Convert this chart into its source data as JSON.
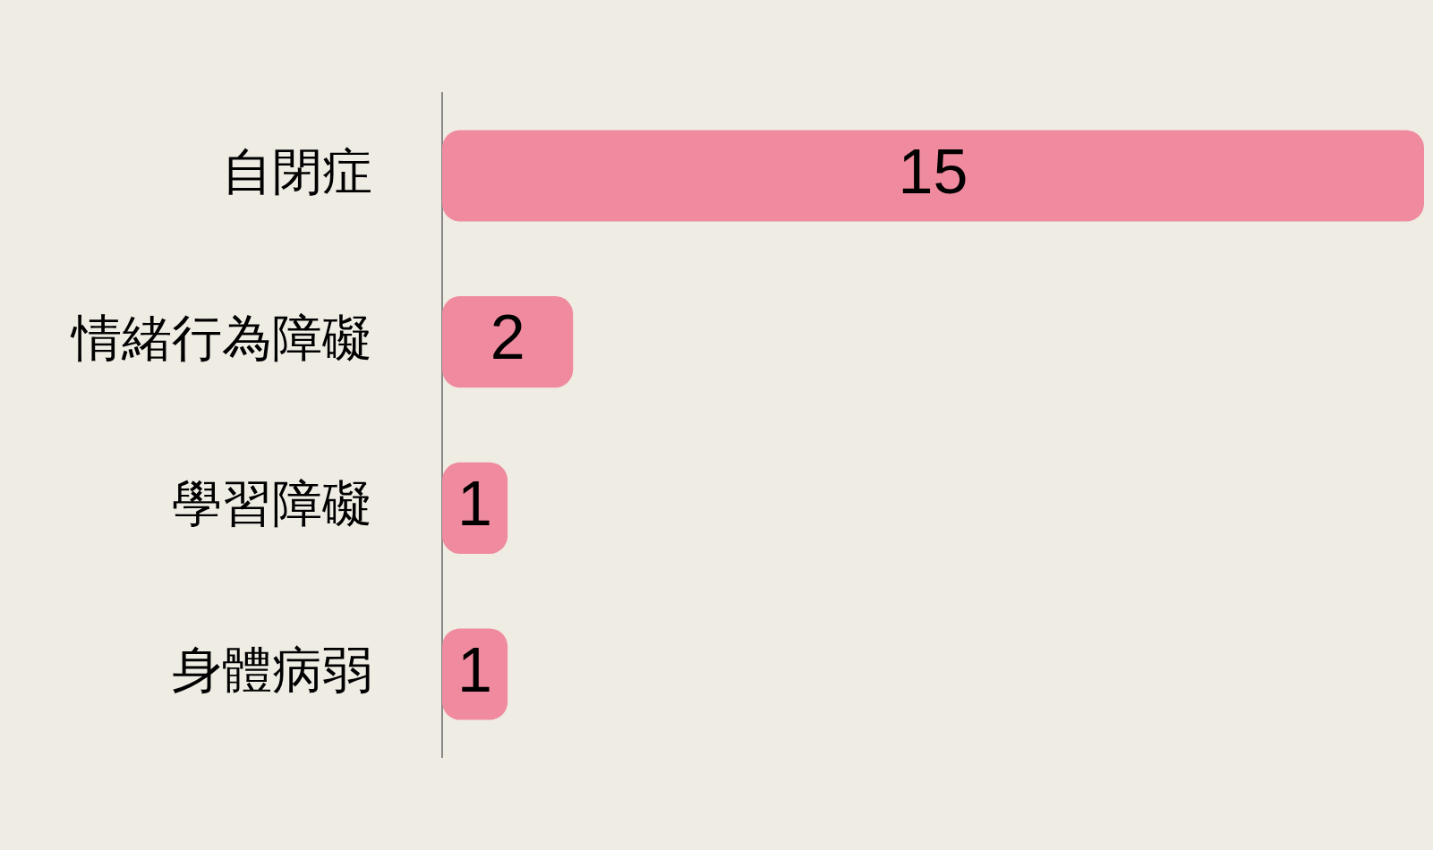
{
  "chart_data": {
    "type": "bar",
    "orientation": "horizontal",
    "categories": [
      "自閉症",
      "情緒行為障礙",
      "學習障礙",
      "身體病弱"
    ],
    "values": [
      15,
      2,
      1,
      1
    ],
    "color": "#f08a9e",
    "data_labels": true,
    "legend": false
  }
}
